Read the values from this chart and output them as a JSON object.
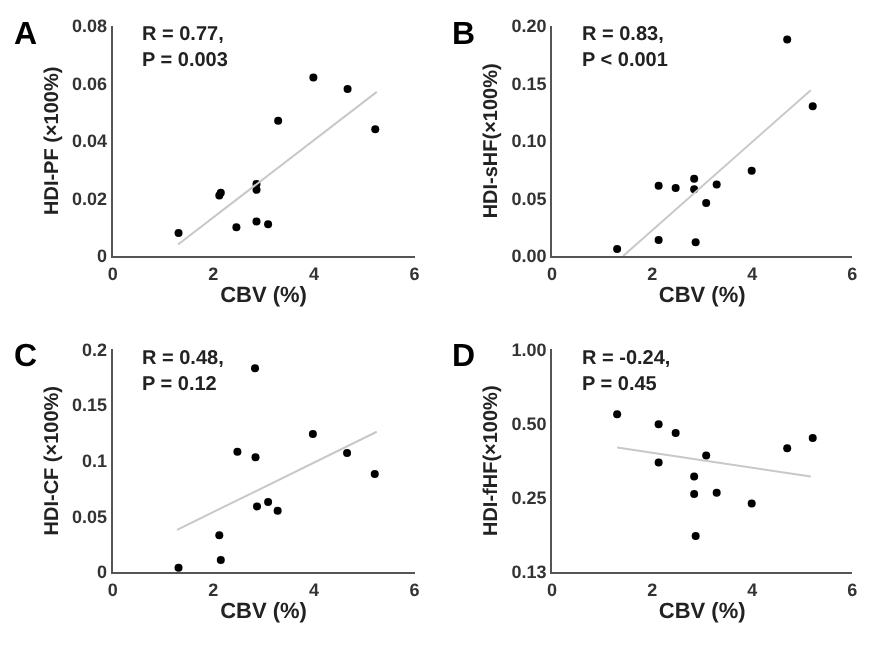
{
  "chart_data": [
    {
      "type": "scatter",
      "ylabel": "HDI-PF (×100%)",
      "xlabel": "CBV (%)",
      "annotations": [
        "A",
        "R = 0.77,\nP = 0.003"
      ],
      "xlim": [
        0,
        6
      ],
      "xticks": [
        0,
        2,
        4,
        6
      ],
      "ylim": [
        0,
        0.08
      ],
      "yticks": [
        0,
        0.02,
        0.04,
        0.06,
        0.08
      ],
      "series": [
        {
          "color": "#000000",
          "marker": "circle",
          "x": [
            1.31,
            2.12,
            2.15,
            2.46,
            2.86,
            2.86,
            2.86,
            3.09,
            3.29,
            3.99,
            4.67,
            5.22
          ],
          "values": [
            0.008,
            0.021,
            0.022,
            0.01,
            0.025,
            0.023,
            0.012,
            0.011,
            0.047,
            0.062,
            0.058,
            0.044
          ]
        },
        {
          "type": "line",
          "marker": "none",
          "color": "#c8c8c8",
          "x": [
            1.3,
            5.25
          ],
          "values": [
            0.004,
            0.057
          ]
        }
      ]
    },
    {
      "type": "scatter",
      "ylabel": "HDI-sHF(×100%)",
      "xlabel": "CBV (%)",
      "annotations": [
        "B",
        "R = 0.83,\nP < 0.001"
      ],
      "xlim": [
        0,
        6
      ],
      "xticks": [
        0,
        2,
        4,
        6
      ],
      "ylim": [
        0,
        0.2
      ],
      "yticks": [
        {
          "value": 0,
          "label": "0.00"
        },
        {
          "value": 0.05,
          "label": "0.05"
        },
        {
          "value": 0.1,
          "label": "0.10"
        },
        {
          "value": 0.15,
          "label": "0.15"
        },
        {
          "value": 0.2,
          "label": "0.20"
        }
      ],
      "series": [
        {
          "color": "#000000",
          "marker": "circle",
          "x": [
            1.3,
            2.13,
            2.13,
            2.47,
            2.84,
            2.84,
            2.87,
            3.08,
            3.29,
            3.99,
            4.7,
            5.21
          ],
          "values": [
            0.006,
            0.061,
            0.014,
            0.059,
            0.067,
            0.058,
            0.012,
            0.046,
            0.062,
            0.074,
            0.188,
            0.13
          ]
        },
        {
          "type": "line",
          "marker": "none",
          "color": "#c8c8c8",
          "x": [
            1.42,
            5.17
          ],
          "values": [
            0,
            0.144
          ]
        }
      ]
    },
    {
      "type": "scatter",
      "ylabel": "HDI-CF (×100%)",
      "xlabel": "CBV (%)",
      "annotations": [
        "C",
        "R = 0.48,\nP = 0.12"
      ],
      "xlim": [
        0,
        6
      ],
      "xticks": [
        0,
        2,
        4,
        6
      ],
      "ylim": [
        0,
        0.2
      ],
      "yticks": [
        0,
        0.05,
        0.1,
        0.15,
        0.2
      ],
      "series": [
        {
          "color": "#000000",
          "marker": "circle",
          "x": [
            1.31,
            2.12,
            2.15,
            2.48,
            2.83,
            2.84,
            2.87,
            3.09,
            3.28,
            3.98,
            4.66,
            5.21
          ],
          "values": [
            0.004,
            0.033,
            0.011,
            0.108,
            0.183,
            0.103,
            0.059,
            0.063,
            0.055,
            0.124,
            0.107,
            0.088
          ]
        },
        {
          "type": "line",
          "marker": "none",
          "color": "#c8c8c8",
          "x": [
            1.28,
            5.25
          ],
          "values": [
            0.038,
            0.126
          ]
        }
      ]
    },
    {
      "type": "scatter",
      "ylabel": "HDI-fHF(×100%)",
      "xlabel": "CBV (%)",
      "annotations": [
        "D",
        "R = -0.24,\nP = 0.45"
      ],
      "log": "y",
      "xlim": [
        0,
        6
      ],
      "xticks": [
        0,
        2,
        4,
        6
      ],
      "ylim": [
        0.125,
        1
      ],
      "yticks": [
        {
          "value": 0.125,
          "label": "0.13"
        },
        {
          "value": 0.25,
          "label": "0.25"
        },
        {
          "value": 0.5,
          "label": "0.50"
        },
        {
          "value": 1,
          "label": "1.00"
        }
      ],
      "series": [
        {
          "color": "#000000",
          "marker": "circle",
          "x": [
            1.3,
            2.13,
            2.13,
            2.47,
            2.84,
            2.84,
            2.87,
            3.08,
            3.29,
            3.99,
            4.7,
            5.21
          ],
          "values": [
            0.546,
            0.497,
            0.348,
            0.458,
            0.305,
            0.259,
            0.175,
            0.371,
            0.262,
            0.237,
            0.397,
            0.437
          ]
        },
        {
          "type": "line",
          "marker": "none",
          "color": "#c8c8c8",
          "x": [
            1.3,
            5.17
          ],
          "values": [
            0.4,
            0.305
          ]
        }
      ]
    }
  ]
}
